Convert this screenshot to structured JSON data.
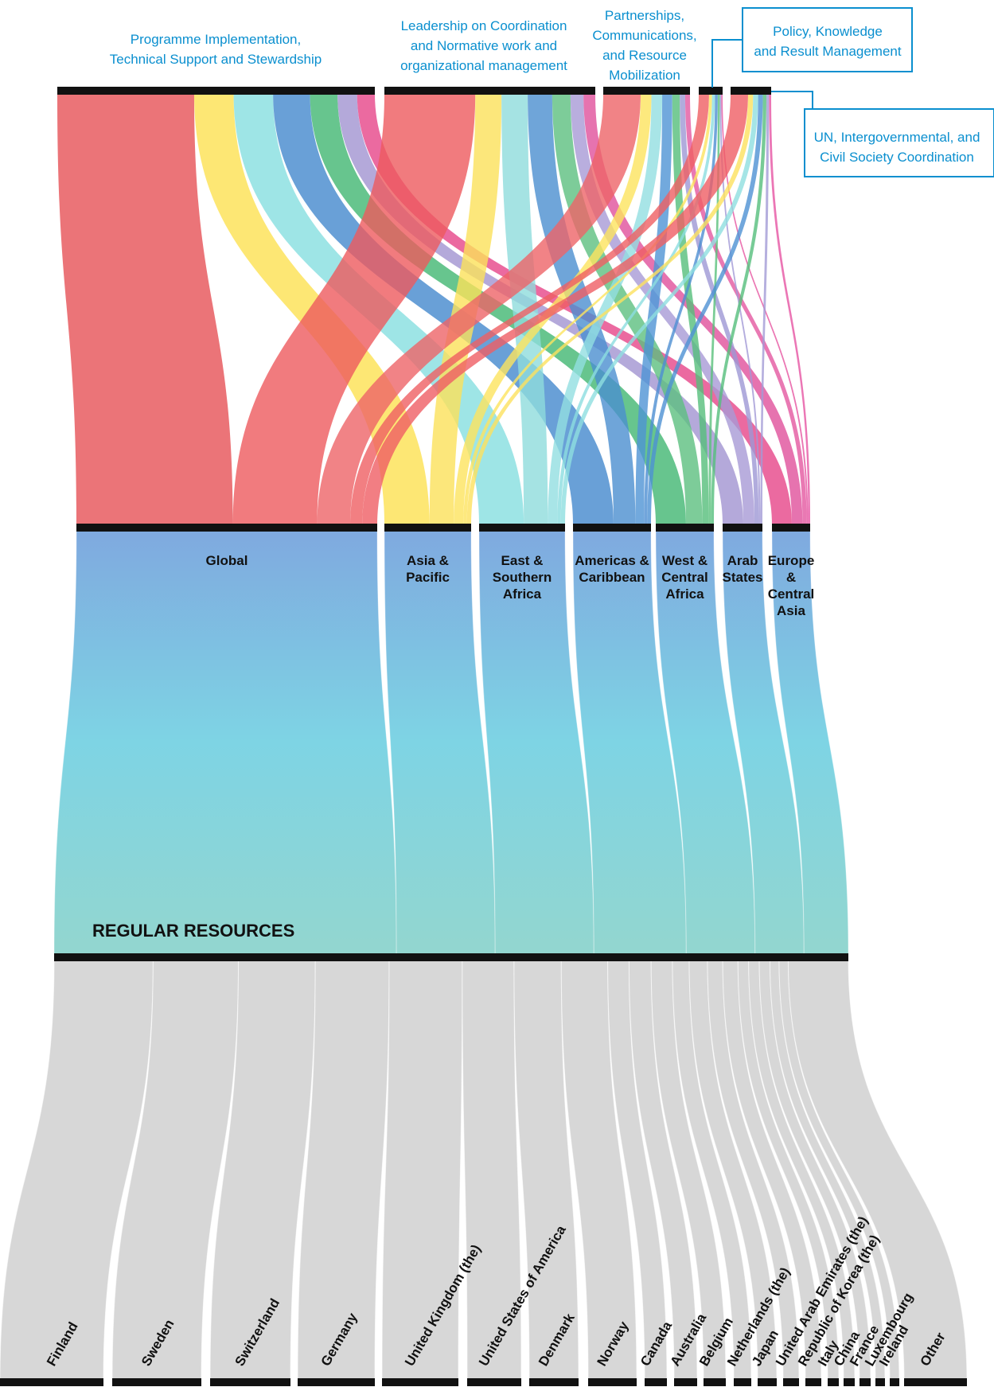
{
  "chart_data": {
    "type": "sankey",
    "source": {
      "label": "REGULAR RESOURCES"
    },
    "outputs": [
      {
        "id": "prog",
        "label_lines": [
          "Programme Implementation,",
          "Technical Support and Stewardship"
        ],
        "boxed": false
      },
      {
        "id": "lead",
        "label_lines": [
          "Leadership on Coordination",
          "and Normative work and",
          "organizational management"
        ],
        "boxed": false
      },
      {
        "id": "part",
        "label_lines": [
          "Partnerships,",
          "Communications,",
          "and Resource",
          "Mobilization"
        ],
        "boxed": false
      },
      {
        "id": "pol",
        "label_lines": [
          "Policy, Knowledge",
          "and Result Management"
        ],
        "boxed": true
      },
      {
        "id": "un",
        "label_lines": [
          "UN, Intergovernmental, and",
          "Civil Society Coordination"
        ],
        "boxed": true
      }
    ],
    "regions": [
      {
        "id": "global",
        "label_lines": [
          "Global"
        ],
        "share": 37.8,
        "color": "#e2555a"
      },
      {
        "id": "asia",
        "label_lines": [
          "Asia &",
          "Pacific"
        ],
        "share": 10.9,
        "color": "#f5a13c"
      },
      {
        "id": "esa",
        "label_lines": [
          "East &",
          "Southern",
          "Africa"
        ],
        "share": 10.9,
        "color": "#8fd8d8"
      },
      {
        "id": "amc",
        "label_lines": [
          "Americas &",
          "Caribbean"
        ],
        "share": 10.2,
        "color": "#4a95d6"
      },
      {
        "id": "wca",
        "label_lines": [
          "West &",
          "Central",
          "Africa"
        ],
        "share": 7.6,
        "color": "#e8e86a"
      },
      {
        "id": "arab",
        "label_lines": [
          "Arab",
          "States"
        ],
        "share": 5.4,
        "color": "#b0a6d8"
      },
      {
        "id": "eca",
        "label_lines": [
          "Europe",
          "&",
          "Central",
          "Asia"
        ],
        "share": 4.9,
        "color": "#f088bb"
      }
    ],
    "donors": [
      "Finland",
      "Sweden",
      "Switzerland",
      "Germany",
      "United Kingdom (the)",
      "United States of America",
      "Denmark",
      "Norway",
      "Canada",
      "Australia",
      "Belgium",
      "Netherlands (the)",
      "Japan",
      "United Arab Emirates (the)",
      "Republic of Korea (the)",
      "Italy",
      "China",
      "France",
      "Luxembourg",
      "Ireland",
      "Other"
    ],
    "colors": {
      "region_bar": "#7fb0de",
      "source_gradient_top": "#7fa9df",
      "source_gradient_mid": "#7ed4e4",
      "source_gradient_bottom": "#93d6cf",
      "donor_flow": "#d7d7d7",
      "bar": "#111111",
      "out_label": "#0a8fcf"
    }
  }
}
